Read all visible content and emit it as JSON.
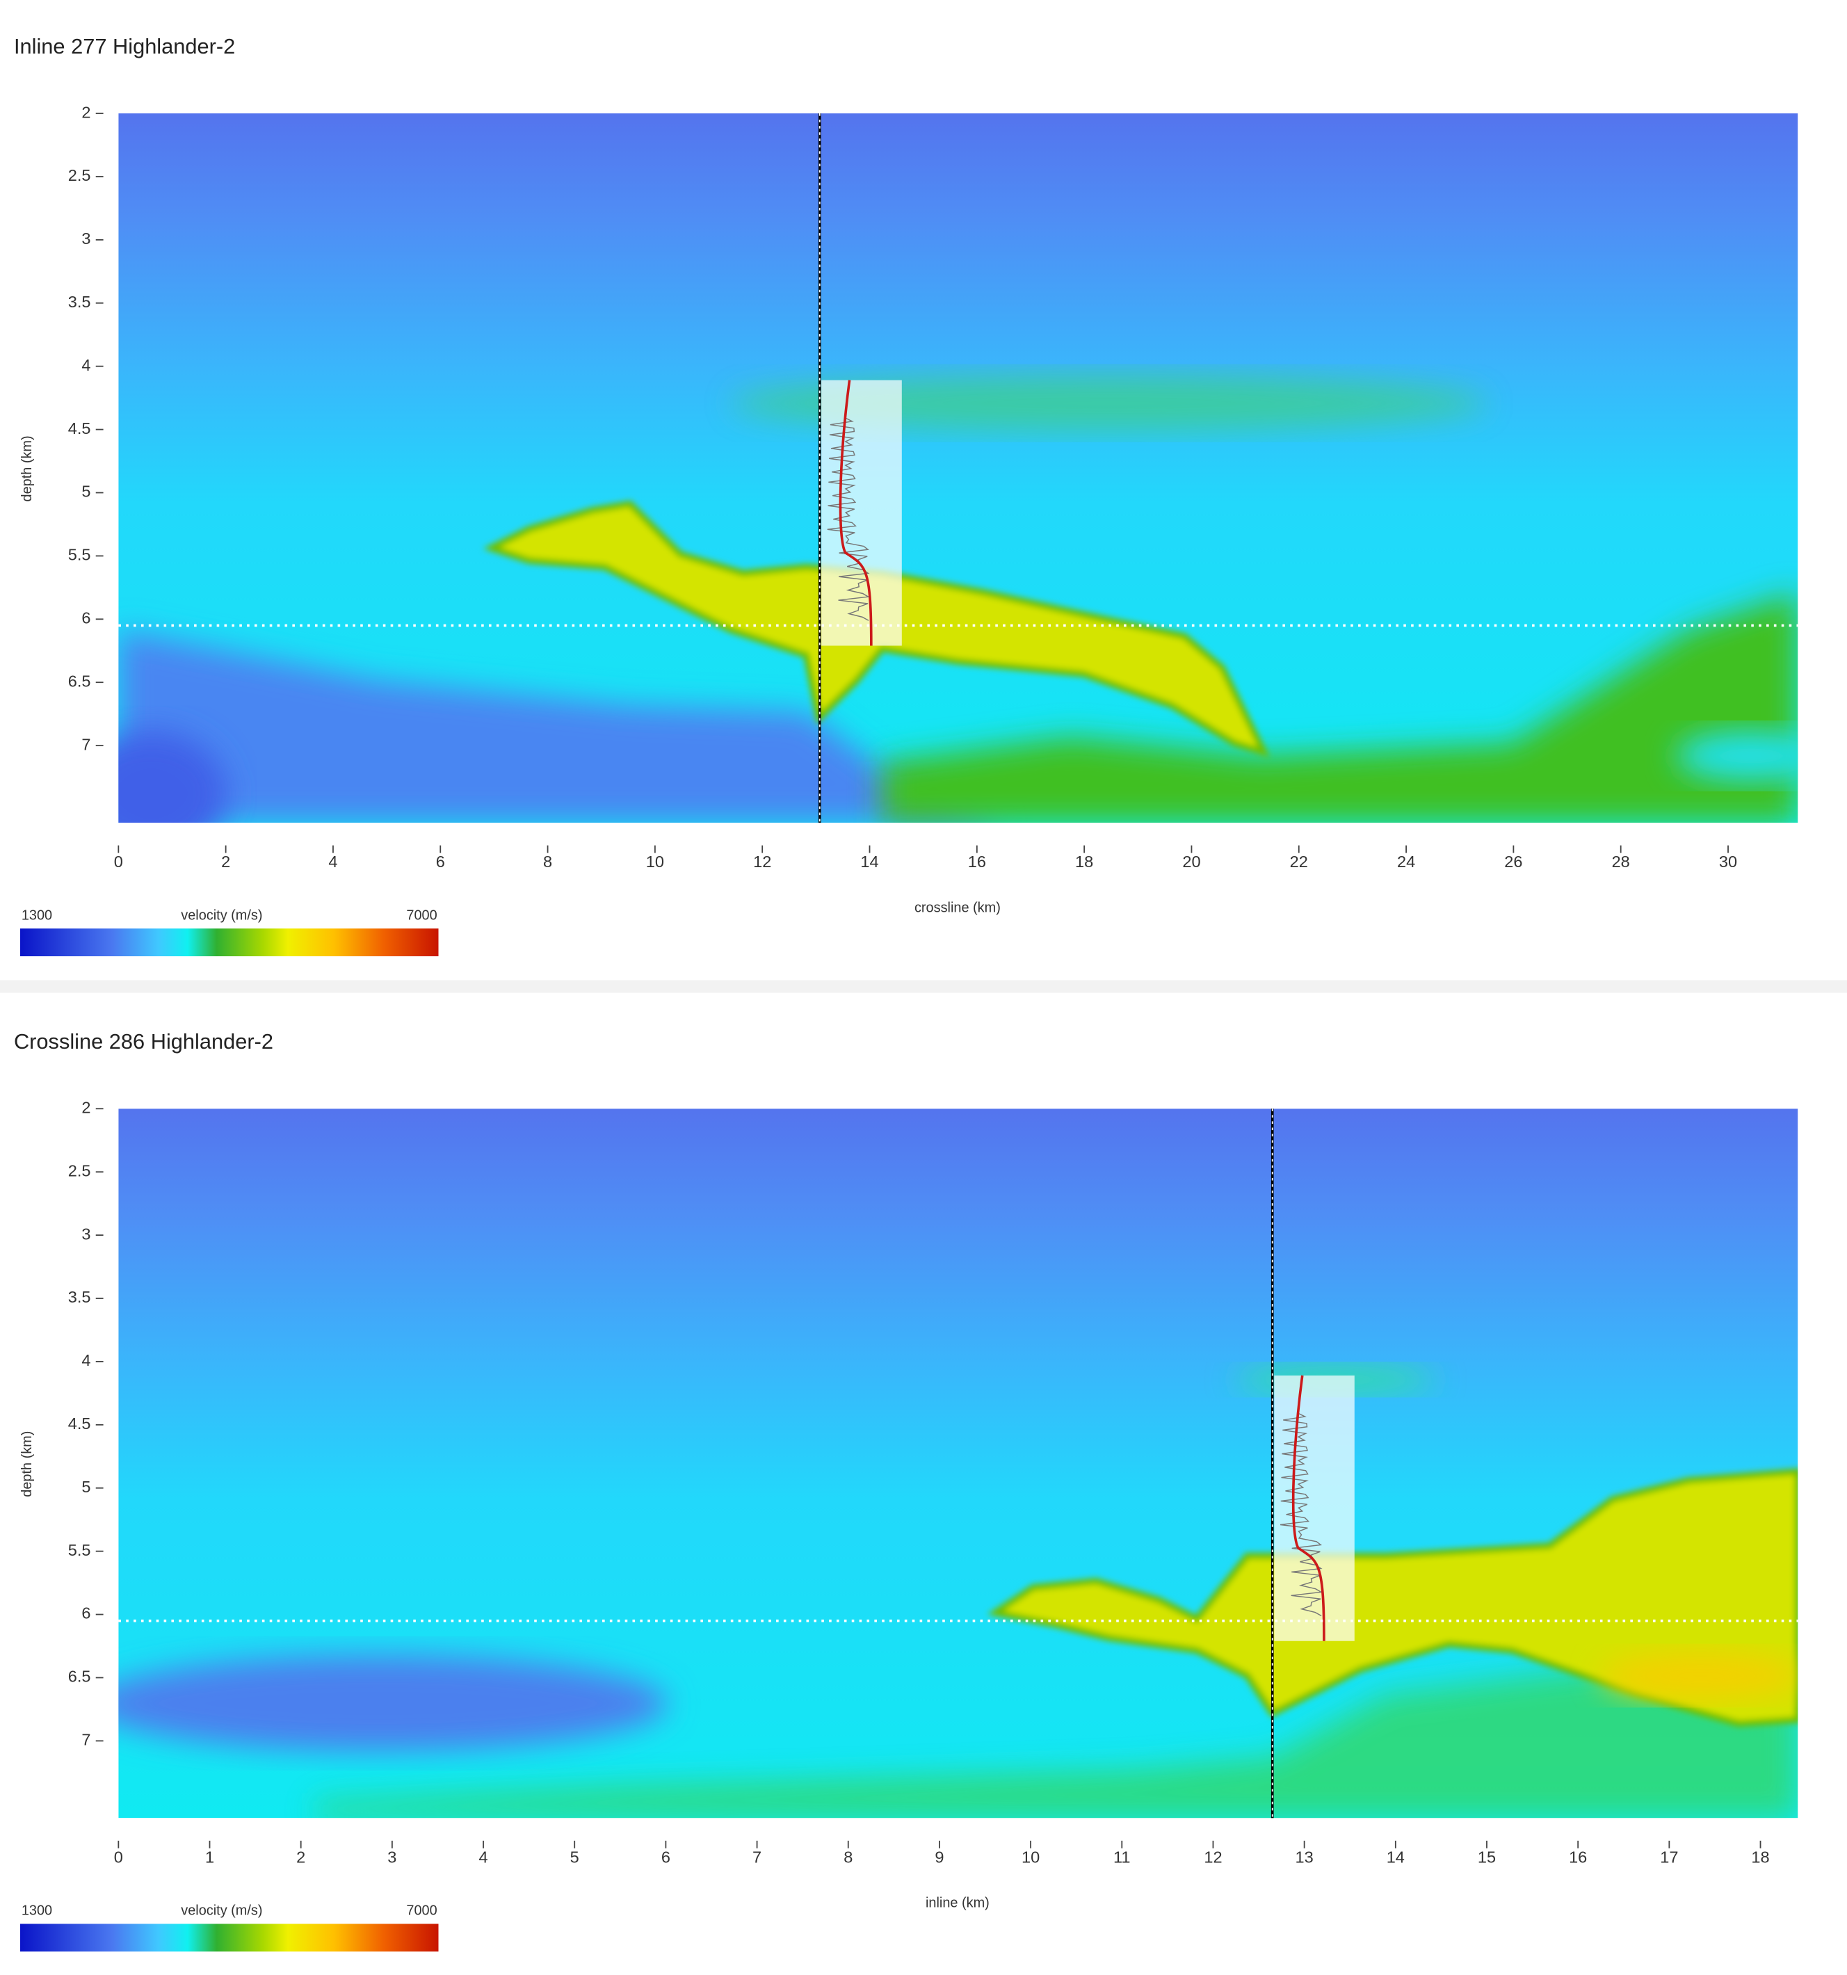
{
  "chart_data": [
    {
      "type": "heatmap",
      "title": "Inline 277 Highlander-2",
      "xlabel": "crossline (km)",
      "ylabel": "depth (km)",
      "xlim": [
        0,
        31.3
      ],
      "ylim": [
        2,
        7.61
      ],
      "yreversed": true,
      "xticks": [
        0,
        2,
        4,
        6,
        8,
        10,
        12,
        14,
        16,
        18,
        20,
        22,
        24,
        26,
        28,
        30
      ],
      "yticks": [
        2,
        2.5,
        3,
        3.5,
        4,
        4.5,
        5,
        5.5,
        6,
        6.5,
        7
      ],
      "well_x": 13.07,
      "marker_depth": 6.05,
      "log_x": [
        13.1,
        14.6
      ],
      "log_depth": [
        4.11,
        6.21
      ],
      "colorbar": {
        "title": "velocity (m/s)",
        "min": 1300,
        "max": 7000,
        "colors": [
          "#0a14c8",
          "#4a78f0",
          "#40c8ff",
          "#10f0f0",
          "#30b030",
          "#a8d800",
          "#f0f000",
          "#ffc000",
          "#f06000",
          "#c81400"
        ]
      }
    },
    {
      "type": "heatmap",
      "title": "Crossline 286 Highlander-2",
      "xlabel": "inline (km)",
      "ylabel": "depth (km)",
      "xlim": [
        0,
        18.41
      ],
      "ylim": [
        2,
        7.61
      ],
      "yreversed": true,
      "xticks": [
        0,
        1,
        2,
        3,
        4,
        5,
        6,
        7,
        8,
        9,
        10,
        11,
        12,
        13,
        14,
        15,
        16,
        17,
        18
      ],
      "yticks": [
        2,
        2.5,
        3,
        3.5,
        4,
        4.5,
        5,
        5.5,
        6,
        6.5,
        7
      ],
      "well_x": 12.65,
      "marker_depth": 6.05,
      "log_x": [
        12.67,
        13.55
      ],
      "log_depth": [
        4.11,
        6.21
      ],
      "colorbar": {
        "title": "velocity (m/s)",
        "min": 1300,
        "max": 7000,
        "colors": [
          "#0a14c8",
          "#4a78f0",
          "#40c8ff",
          "#10f0f0",
          "#30b030",
          "#a8d800",
          "#f0f000",
          "#ffc000",
          "#f06000",
          "#c81400"
        ]
      }
    }
  ]
}
